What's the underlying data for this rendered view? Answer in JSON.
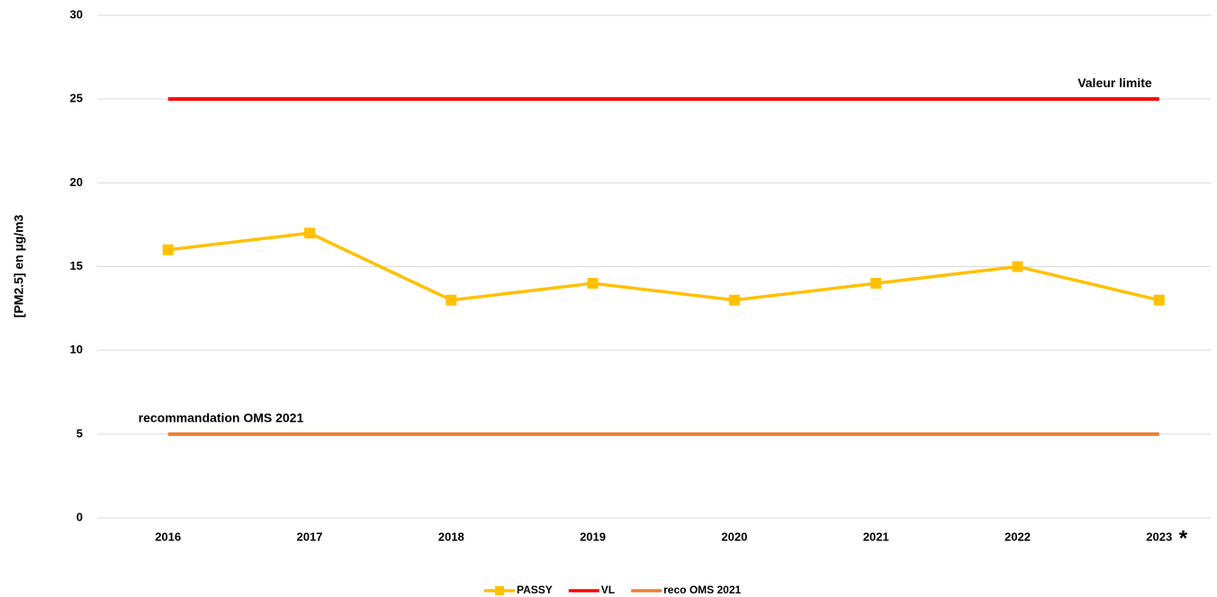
{
  "chart_data": {
    "type": "line",
    "y_label": "[PM2.5] en µg/m3",
    "categories": [
      "2016",
      "2017",
      "2018",
      "2019",
      "2020",
      "2021",
      "2022",
      "2023"
    ],
    "series": [
      {
        "name": "PASSY",
        "color": "#FFC000",
        "marker": "square",
        "values": [
          16,
          17,
          13,
          14,
          13,
          14,
          15,
          13
        ]
      },
      {
        "name": "VL",
        "color": "#FF0000",
        "values": [
          25,
          25,
          25,
          25,
          25,
          25,
          25,
          25
        ]
      },
      {
        "name": "reco OMS 2021",
        "color": "#ED7D31",
        "values": [
          5,
          5,
          5,
          5,
          5,
          5,
          5,
          5
        ]
      }
    ],
    "annotations": [
      "Valeur limite",
      "recommandation OMS 2021",
      "*"
    ],
    "ylim": [
      0,
      30
    ],
    "yticks": [
      0,
      5,
      10,
      15,
      20,
      25,
      30
    ],
    "grid": true,
    "legend": "bottom"
  }
}
